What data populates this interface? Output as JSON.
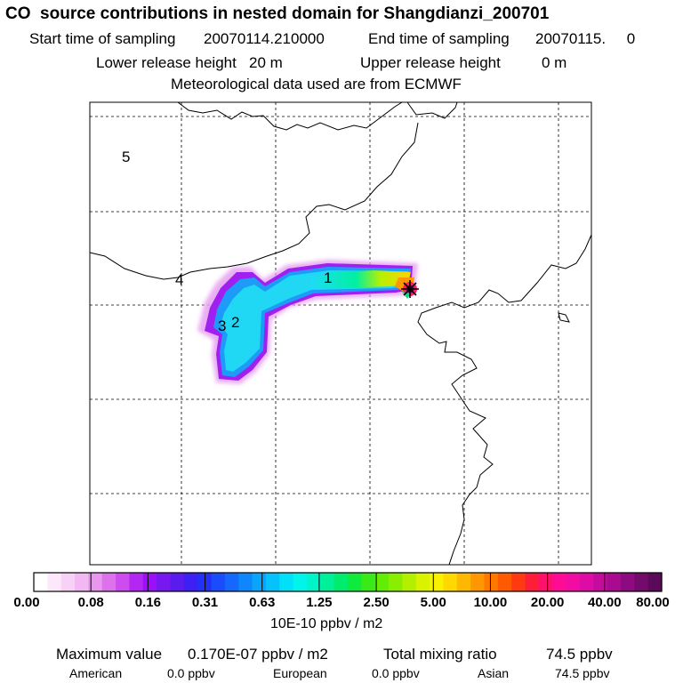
{
  "header": {
    "title": "CO  source contributions in nested domain for Shangdianzi_200701",
    "start_label": "Start time of sampling",
    "start_value": "20070114.210000",
    "end_label": "End time of sampling",
    "end_value": "20070115.     0",
    "lower_label": "Lower release height",
    "lower_value": "20 m",
    "upper_label": "Upper release height",
    "upper_value": "0 m",
    "met": "Meteorological data used are from ECMWF"
  },
  "map": {
    "region_labels": [
      "1",
      "2",
      "3",
      "4",
      "5"
    ],
    "receptor_marker": "star"
  },
  "colorbar": {
    "tick_labels": [
      "0.00",
      "0.08",
      "0.16",
      "0.31",
      "0.63",
      "1.25",
      "2.50",
      "5.00",
      "10.00",
      "20.00",
      "40.00",
      "80.00"
    ],
    "units": "10E-10 ppbv / m2",
    "colors": [
      "#ffffff",
      "#fde8fb",
      "#f8d2f6",
      "#f2b8f1",
      "#e996ee",
      "#dd72ec",
      "#cc4cee",
      "#b426f2",
      "#9a10f8",
      "#7818f0",
      "#5a1cee",
      "#3c20f4",
      "#2230f8",
      "#1a4cfc",
      "#1468fc",
      "#0e86fc",
      "#0aa4fc",
      "#06c2fc",
      "#00e0f8",
      "#00f4ea",
      "#00f4c8",
      "#00f09a",
      "#00ec6c",
      "#10ea3c",
      "#3aea18",
      "#62ec06",
      "#8aee00",
      "#b2f000",
      "#d8f200",
      "#f8f200",
      "#ffd800",
      "#ffb800",
      "#ff9800",
      "#ff7800",
      "#ff5a00",
      "#ff3a10",
      "#ff1e3a",
      "#ff106a",
      "#ff0c96",
      "#f20ca4",
      "#dc0ca4",
      "#c40c9c",
      "#aa0a90",
      "#8e0a80",
      "#740a6c",
      "#5a0a58"
    ]
  },
  "stats": {
    "max_label": "Maximum value",
    "max_value": "0.170E-07 ppbv / m2",
    "total_label": "Total mixing ratio",
    "total_value": "74.5 ppbv",
    "regions": [
      {
        "name": "American",
        "value": "0.0 ppbv"
      },
      {
        "name": "European",
        "value": "0.0 ppbv"
      },
      {
        "name": "Asian",
        "value": "74.5 ppbv"
      }
    ]
  }
}
